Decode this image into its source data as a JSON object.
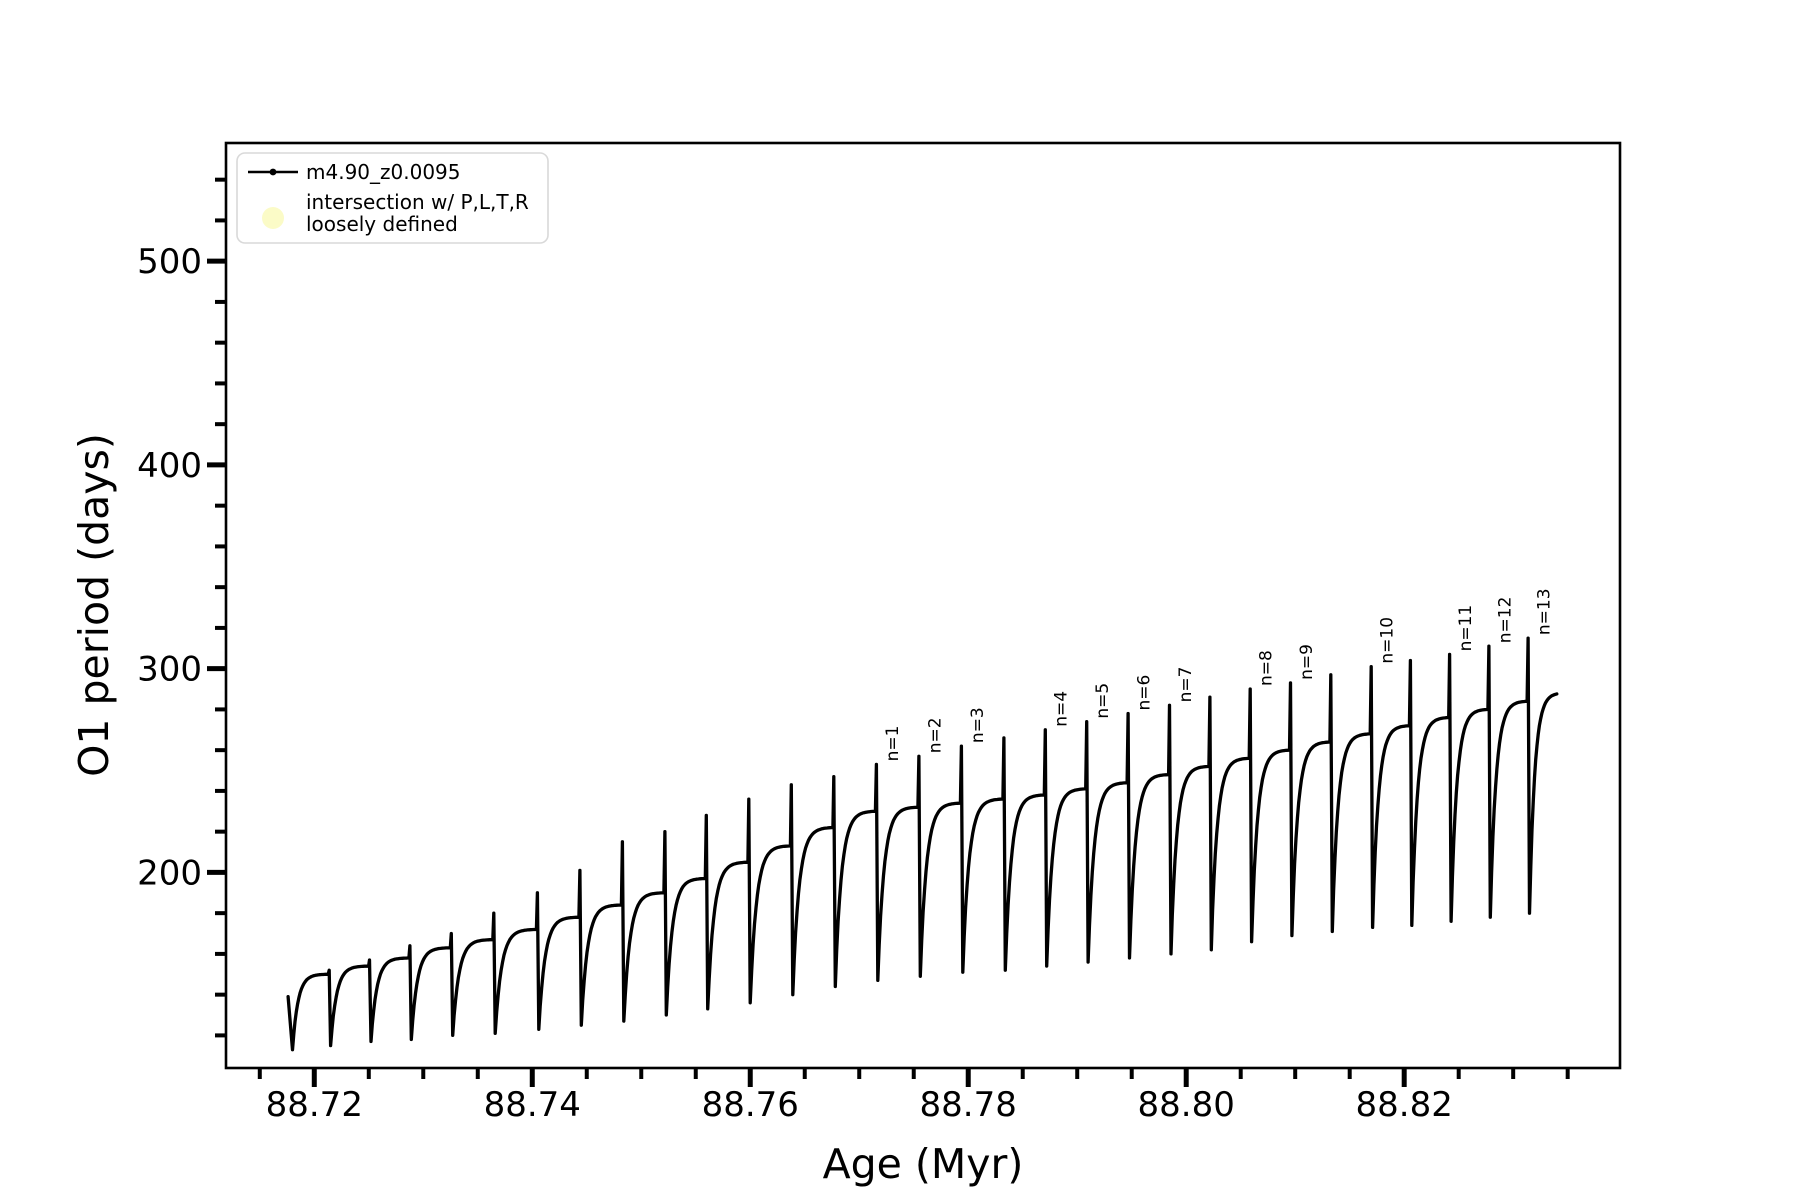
{
  "window": {
    "background": "#ffffff"
  },
  "chart_data": {
    "type": "line",
    "title": "",
    "xlabel": "Age (Myr)",
    "ylabel": "O1 period (days)",
    "x_range": [
      88.7119,
      88.8398
    ],
    "y_range": [
      104,
      558
    ],
    "x_major_ticks": [
      88.72,
      88.74,
      88.76,
      88.78,
      88.8,
      88.82
    ],
    "x_major_tick_labels": [
      "88.72",
      "88.74",
      "88.76",
      "88.78",
      "88.80",
      "88.82"
    ],
    "x_minor_tick_start": 88.715,
    "x_minor_tick_step": 0.005,
    "x_minor_tick_end": 88.835,
    "y_major_ticks": [
      200,
      300,
      400,
      500
    ],
    "y_major_tick_labels": [
      "200",
      "300",
      "400",
      "500"
    ],
    "y_minor_tick_start": 120,
    "y_minor_tick_step": 20,
    "y_minor_tick_end": 540,
    "grid": false,
    "legend": {
      "position": "upper-left",
      "entries": [
        {
          "label": "m4.90_z0.0095",
          "marker": "line-with-dot",
          "color": "#000000"
        },
        {
          "label_line1": "intersection w/ P,L,T,R",
          "label_line2": "loosely defined",
          "marker": "circle",
          "color": "#fbfbc4"
        }
      ]
    },
    "series": {
      "name": "m4.90_z0.0095",
      "color": "#000000",
      "start_point": {
        "age": 88.7176,
        "period": 139
      },
      "dip_ages": [
        88.718,
        88.7215,
        88.7252,
        88.7289,
        88.7327,
        88.7366,
        88.7406,
        88.7445,
        88.7484,
        88.7523,
        88.7561,
        88.76,
        88.7639,
        88.7678,
        88.7717,
        88.7756,
        88.7795,
        88.7834,
        88.7872,
        88.791,
        88.7948,
        88.7986,
        88.8023,
        88.806,
        88.8097,
        88.8134,
        88.8171,
        88.8207,
        88.8243,
        88.8279,
        88.8315
      ],
      "dip_periods": [
        113,
        115,
        117,
        118,
        120,
        121,
        123,
        125,
        127,
        130,
        133,
        136,
        140,
        144,
        147,
        149,
        151,
        152,
        154,
        156,
        158,
        160,
        162,
        166,
        169,
        171,
        173,
        174,
        176,
        178,
        180
      ],
      "peak_periods": [
        150,
        154,
        158,
        163,
        167,
        172,
        178,
        184,
        190,
        197,
        205,
        213,
        222,
        230,
        232,
        234,
        236,
        238,
        241,
        244,
        248,
        252,
        256,
        260,
        264,
        268,
        272,
        276,
        280,
        284
      ],
      "spike_top_periods": [
        152,
        157,
        164,
        170,
        180,
        190,
        201,
        215,
        220,
        228,
        236,
        243,
        247,
        253,
        257,
        262,
        266,
        270,
        274,
        278,
        282,
        286,
        290,
        293,
        297,
        301,
        304,
        307,
        311,
        315
      ],
      "end_point": {
        "age": 88.834,
        "period": 287
      }
    },
    "annotations": {
      "13": "n=1",
      "14": "n=2",
      "15": "n=3",
      "17": "n=4",
      "18": "n=5",
      "19": "n=6",
      "20": "n=7",
      "22": "n=8",
      "23": "n=9",
      "25": "n=10",
      "27": "n=11",
      "28": "n=12",
      "29": "n=13"
    }
  }
}
